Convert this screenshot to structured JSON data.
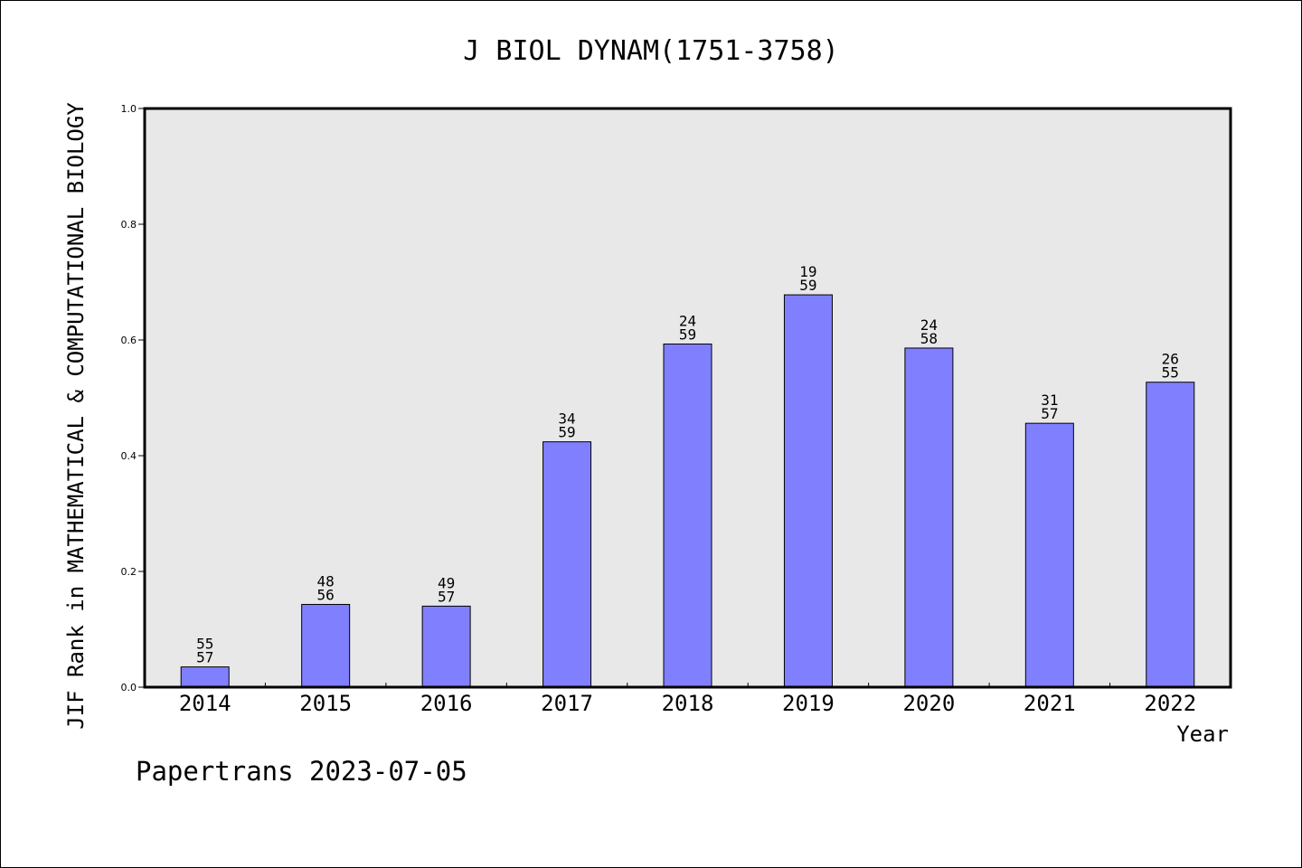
{
  "chart_data": {
    "type": "bar",
    "title": "J BIOL DYNAM(1751-3758)",
    "xlabel": "Year",
    "ylabel": "JIF Rank in MATHEMATICAL & COMPUTATIONAL BIOLOGY",
    "ylim": [
      0,
      1.0
    ],
    "yticks": [
      "0.0",
      "0.2",
      "0.4",
      "0.6",
      "0.8",
      "1.0"
    ],
    "categories": [
      "2014",
      "2015",
      "2016",
      "2017",
      "2018",
      "2019",
      "2020",
      "2021",
      "2022"
    ],
    "values": [
      0.035,
      0.143,
      0.14,
      0.424,
      0.593,
      0.678,
      0.586,
      0.456,
      0.527
    ],
    "rank_labels": [
      {
        "rank": "55",
        "total": "57"
      },
      {
        "rank": "48",
        "total": "56"
      },
      {
        "rank": "49",
        "total": "57"
      },
      {
        "rank": "34",
        "total": "59"
      },
      {
        "rank": "24",
        "total": "59"
      },
      {
        "rank": "19",
        "total": "59"
      },
      {
        "rank": "24",
        "total": "58"
      },
      {
        "rank": "31",
        "total": "57"
      },
      {
        "rank": "26",
        "total": "55"
      }
    ],
    "grid": false,
    "bar_color": "#8080ff",
    "plot_background": "#e8e8e8"
  },
  "footer": {
    "text": "Papertrans 2023-07-05"
  }
}
